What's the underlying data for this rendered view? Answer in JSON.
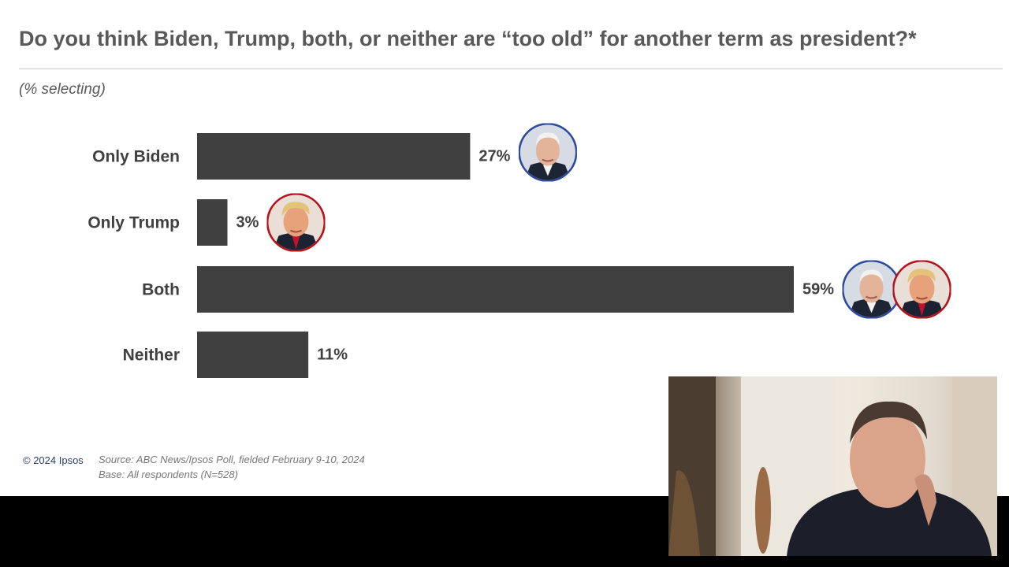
{
  "title": "Do you think Biden, Trump, both, or neither are “too old” for another term as president?*",
  "subtitle": "(% selecting)",
  "footer": {
    "copyright": "© 2024 Ipsos",
    "source": "Source: ABC News/Ipsos Poll, fielded February 9-10, 2024",
    "base": "Base: All respondents (N=528)"
  },
  "colors": {
    "bar": "#404040",
    "biden_ring": "#2e4a9e",
    "trump_ring": "#b5121b",
    "text": "#595959"
  },
  "chart_data": {
    "type": "bar",
    "orientation": "horizontal",
    "categories": [
      "Only Biden",
      "Only Trump",
      "Both",
      "Neither"
    ],
    "values": [
      27,
      3,
      59,
      11
    ],
    "value_labels": [
      "27%",
      "3%",
      "59%",
      "11%"
    ],
    "title": "Do you think Biden, Trump, both, or neither are “too old” for another term as president?*",
    "xlim": [
      0,
      65
    ],
    "grid": false,
    "legend": "none",
    "bar_icons": [
      [
        "biden-portrait"
      ],
      [
        "trump-portrait"
      ],
      [
        "biden-portrait",
        "trump-portrait"
      ],
      []
    ]
  },
  "webcam": {
    "icon": "presenter-webcam-feed"
  }
}
